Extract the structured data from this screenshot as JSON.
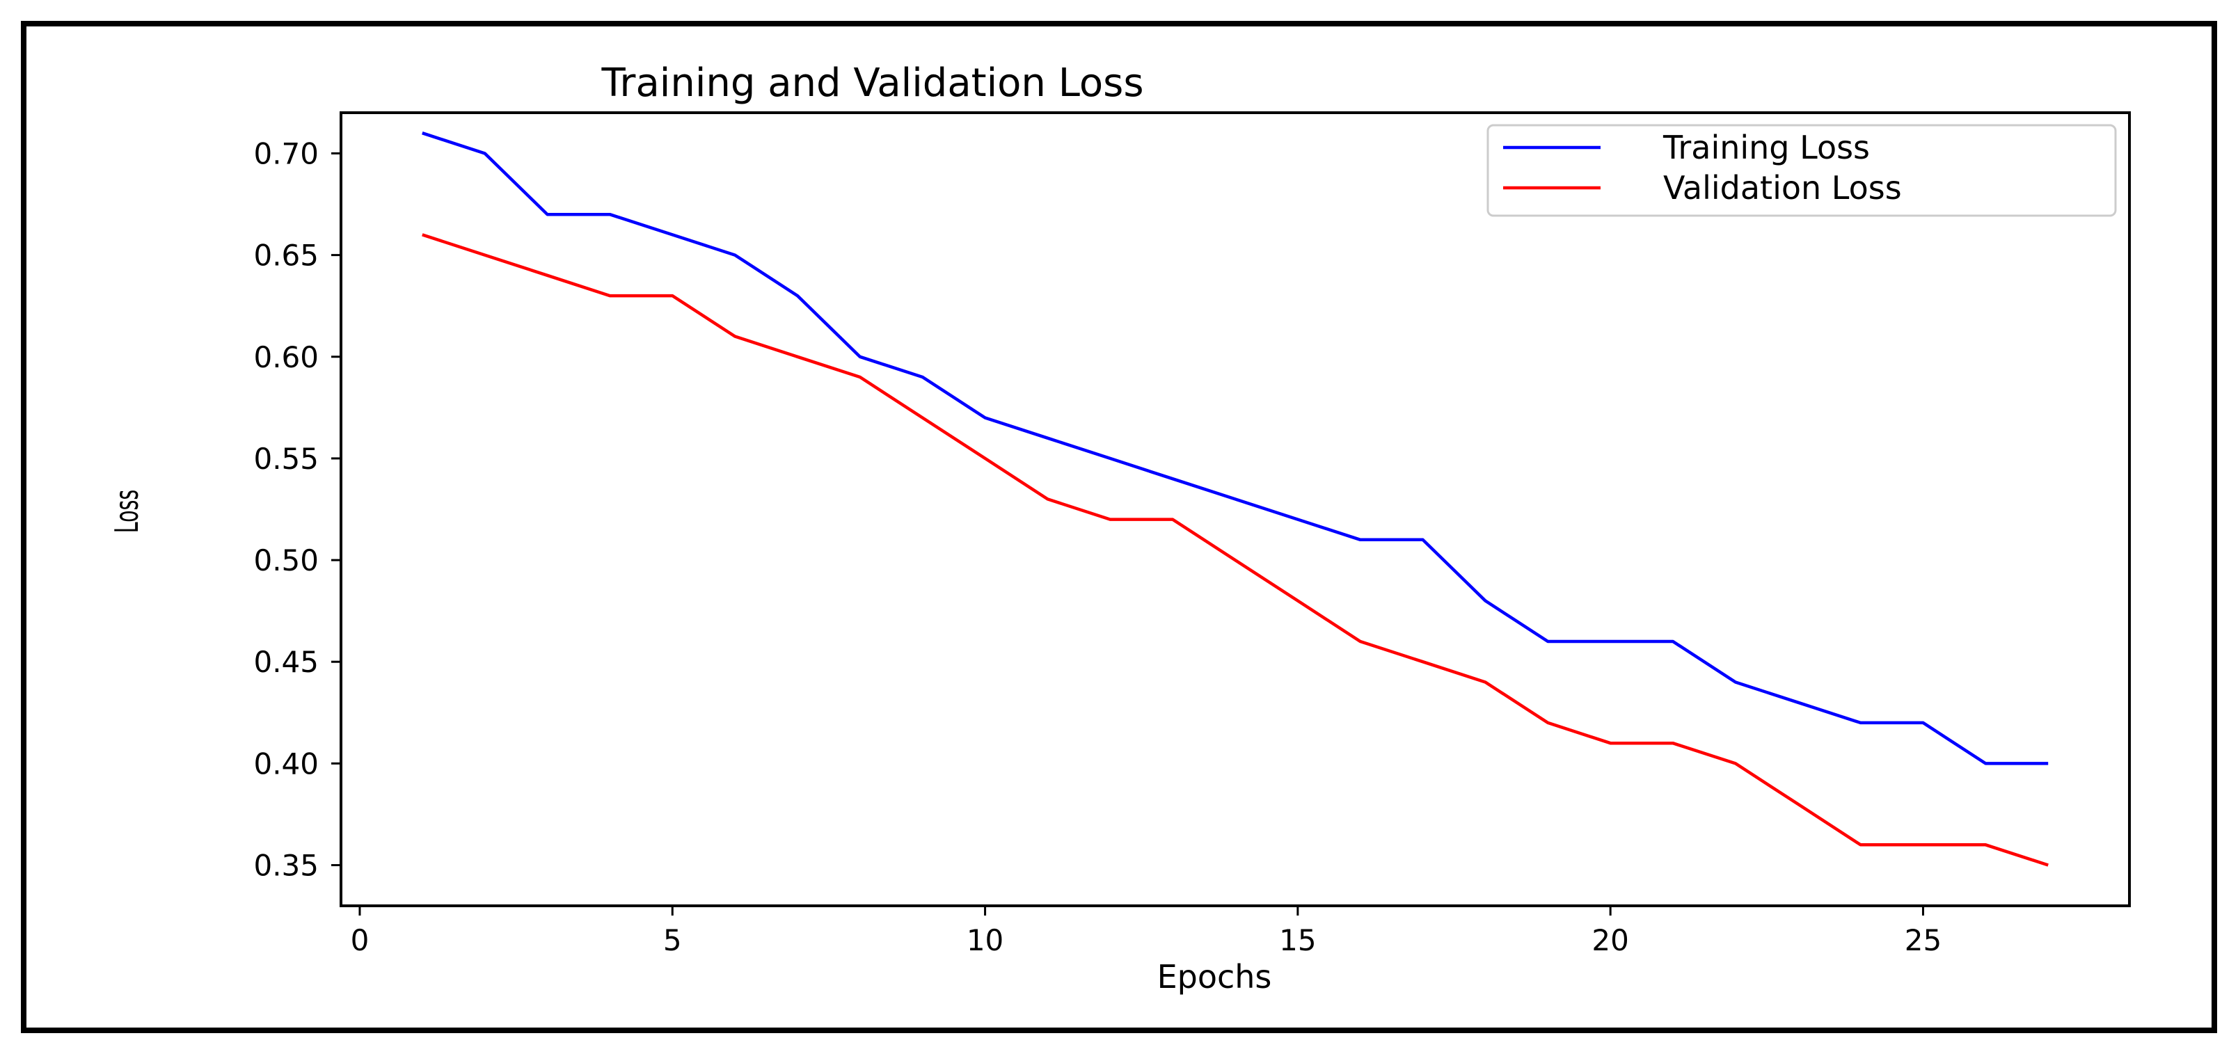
{
  "chart_data": {
    "type": "line",
    "title": "Training and Validation Loss",
    "xlabel": "Epochs",
    "ylabel": "Loss",
    "xlim": [
      -0.3,
      28.3
    ],
    "ylim": [
      0.33,
      0.72
    ],
    "xticks": [
      0,
      5,
      10,
      15,
      20,
      25
    ],
    "yticks": [
      0.35,
      0.4,
      0.45,
      0.5,
      0.55,
      0.6,
      0.65,
      0.7
    ],
    "xtick_labels": [
      "0",
      "5",
      "10",
      "15",
      "20",
      "25"
    ],
    "ytick_labels": [
      "0.35",
      "0.40",
      "0.45",
      "0.50",
      "0.55",
      "0.60",
      "0.65",
      "0.70"
    ],
    "grid": false,
    "legend_position": "top-right",
    "x": [
      1,
      2,
      3,
      4,
      5,
      6,
      7,
      8,
      9,
      10,
      11,
      12,
      13,
      14,
      15,
      16,
      17,
      18,
      19,
      20,
      21,
      22,
      23,
      24,
      25,
      26,
      27
    ],
    "series": [
      {
        "name": "Training Loss",
        "color": "#0000ff",
        "values": [
          0.71,
          0.7,
          0.67,
          0.67,
          0.66,
          0.65,
          0.63,
          0.6,
          0.59,
          0.57,
          0.56,
          0.55,
          0.54,
          0.53,
          0.52,
          0.51,
          0.51,
          0.48,
          0.46,
          0.46,
          0.46,
          0.44,
          0.43,
          0.42,
          0.42,
          0.4,
          0.4
        ]
      },
      {
        "name": "Validation Loss",
        "color": "#ff0000",
        "values": [
          0.66,
          0.65,
          0.64,
          0.63,
          0.63,
          0.61,
          0.6,
          0.59,
          0.57,
          0.55,
          0.53,
          0.52,
          0.52,
          0.5,
          0.48,
          0.46,
          0.45,
          0.44,
          0.42,
          0.41,
          0.41,
          0.4,
          0.38,
          0.36,
          0.36,
          0.36,
          0.35
        ]
      }
    ]
  }
}
